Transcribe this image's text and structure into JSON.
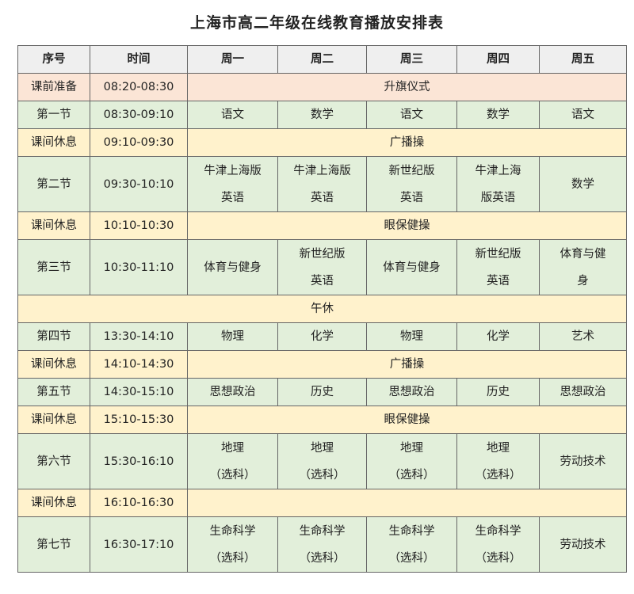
{
  "title": "上海市高二年级在线教育播放安排表",
  "colors": {
    "header": "#efefef",
    "prep": "#fbe5d6",
    "lesson": "#e2efda",
    "break": "#fff2cc"
  },
  "headers": [
    "序号",
    "时间",
    "周一",
    "周二",
    "周三",
    "周四",
    "周五"
  ],
  "rows": [
    {
      "type": "pink",
      "label": "课前准备",
      "time": "08:20-08:30",
      "span": "升旗仪式"
    },
    {
      "type": "green",
      "label": "第一节",
      "time": "08:30-09:10",
      "cells": [
        "语文",
        "数学",
        "语文",
        "数学",
        "语文"
      ]
    },
    {
      "type": "yellow",
      "label": "课间休息",
      "time": "09:10-09:30",
      "span": "广播操"
    },
    {
      "type": "green",
      "label": "第二节",
      "time": "09:30-10:10",
      "cells": [
        [
          "牛津上海版",
          "英语"
        ],
        [
          "牛津上海版",
          "英语"
        ],
        [
          "新世纪版",
          "英语"
        ],
        [
          "牛津上海",
          "版英语"
        ],
        "数学"
      ]
    },
    {
      "type": "yellow",
      "label": "课间休息",
      "time": "10:10-10:30",
      "span": "眼保健操"
    },
    {
      "type": "green",
      "label": "第三节",
      "time": "10:30-11:10",
      "cells": [
        "体育与健身",
        [
          "新世纪版",
          "英语"
        ],
        "体育与健身",
        [
          "新世纪版",
          "英语"
        ],
        [
          "体育与健",
          "身"
        ]
      ]
    },
    {
      "type": "yellow",
      "full": "午休"
    },
    {
      "type": "green",
      "label": "第四节",
      "time": "13:30-14:10",
      "cells": [
        "物理",
        "化学",
        "物理",
        "化学",
        "艺术"
      ]
    },
    {
      "type": "yellow",
      "label": "课间休息",
      "time": "14:10-14:30",
      "span": "广播操"
    },
    {
      "type": "green",
      "label": "第五节",
      "time": "14:30-15:10",
      "cells": [
        "思想政治",
        "历史",
        "思想政治",
        "历史",
        "思想政治"
      ]
    },
    {
      "type": "yellow",
      "label": "课间休息",
      "time": "15:10-15:30",
      "span": "眼保健操"
    },
    {
      "type": "green",
      "label": "第六节",
      "time": "15:30-16:10",
      "cells": [
        [
          "地理",
          "（选科）"
        ],
        [
          "地理",
          "（选科）"
        ],
        [
          "地理",
          "（选科）"
        ],
        [
          "地理",
          "（选科）"
        ],
        "劳动技术"
      ]
    },
    {
      "type": "yellow",
      "label": "课间休息",
      "time": "16:10-16:30",
      "span": ""
    },
    {
      "type": "green",
      "label": "第七节",
      "time": "16:30-17:10",
      "cells": [
        [
          "生命科学",
          "（选科）"
        ],
        [
          "生命科学",
          "（选科）"
        ],
        [
          "生命科学",
          "（选科）"
        ],
        [
          "生命科学",
          "（选科）"
        ],
        "劳动技术"
      ]
    }
  ]
}
